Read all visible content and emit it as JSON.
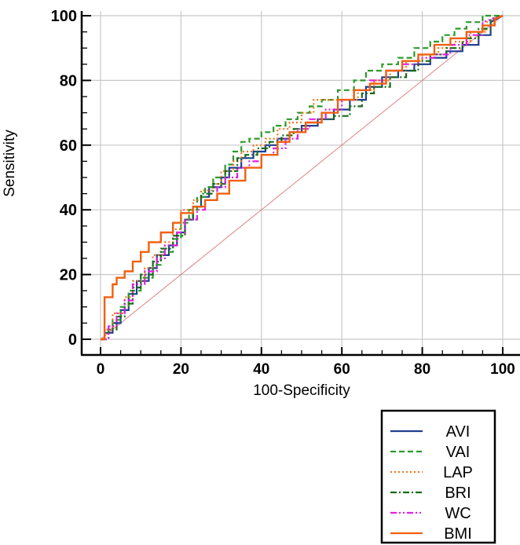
{
  "chart_data": {
    "type": "line",
    "title": "",
    "xlabel": "100-Specificity",
    "ylabel": "Sensitivity",
    "xlim": [
      0,
      100
    ],
    "ylim": [
      0,
      100
    ],
    "xticks": [
      0,
      20,
      40,
      60,
      80,
      100
    ],
    "yticks": [
      0,
      20,
      40,
      60,
      80,
      100
    ],
    "grid": true,
    "legend_position": "bottom-right",
    "reference_line": {
      "name": "chance",
      "color": "#e08080",
      "x": [
        0,
        100
      ],
      "y": [
        0,
        100
      ]
    },
    "series": [
      {
        "name": "AVI",
        "color": "#1f3f8f",
        "style": "solid",
        "x": [
          0,
          1,
          1,
          3,
          3,
          5,
          5,
          7,
          7,
          9,
          9,
          12,
          12,
          14,
          14,
          17,
          17,
          19,
          19,
          21,
          21,
          23,
          23,
          25,
          25,
          27,
          27,
          30,
          30,
          32,
          32,
          35,
          35,
          38,
          38,
          41,
          41,
          44,
          44,
          47,
          47,
          50,
          50,
          54,
          54,
          58,
          58,
          62,
          62,
          66,
          66,
          70,
          70,
          74,
          74,
          78,
          78,
          82,
          82,
          86,
          86,
          90,
          90,
          94,
          94,
          97,
          97,
          100
        ],
        "y": [
          0,
          0,
          2,
          2,
          5,
          5,
          9,
          9,
          14,
          14,
          18,
          18,
          22,
          22,
          26,
          26,
          29,
          29,
          33,
          33,
          37,
          37,
          41,
          41,
          44,
          44,
          47,
          47,
          50,
          50,
          53,
          53,
          56,
          56,
          58,
          58,
          60,
          60,
          62,
          62,
          64,
          64,
          66,
          66,
          68,
          68,
          71,
          71,
          74,
          74,
          78,
          78,
          81,
          81,
          83,
          83,
          85,
          85,
          87,
          87,
          89,
          89,
          91,
          91,
          94,
          94,
          98,
          100
        ]
      },
      {
        "name": "VAI",
        "color": "#2a9a2a",
        "style": "dash",
        "x": [
          0,
          1,
          1,
          3,
          3,
          5,
          5,
          7,
          7,
          10,
          10,
          13,
          13,
          15,
          15,
          18,
          18,
          20,
          20,
          22,
          22,
          24,
          24,
          26,
          26,
          28,
          28,
          31,
          31,
          33,
          33,
          35,
          35,
          37,
          37,
          40,
          40,
          43,
          43,
          46,
          46,
          49,
          49,
          52,
          52,
          55,
          55,
          59,
          59,
          63,
          63,
          66,
          66,
          70,
          70,
          74,
          74,
          78,
          78,
          82,
          82,
          85,
          85,
          88,
          88,
          91,
          91,
          95,
          95,
          100
        ],
        "y": [
          0,
          0,
          3,
          3,
          6,
          6,
          10,
          10,
          15,
          15,
          19,
          19,
          23,
          23,
          27,
          27,
          31,
          31,
          36,
          36,
          40,
          40,
          44,
          44,
          47,
          47,
          50,
          50,
          54,
          54,
          58,
          58,
          61,
          61,
          62,
          62,
          64,
          64,
          66,
          66,
          68,
          68,
          70,
          70,
          72,
          72,
          74,
          74,
          77,
          77,
          80,
          80,
          83,
          83,
          85,
          85,
          87,
          87,
          90,
          90,
          92,
          92,
          94,
          94,
          96,
          96,
          98,
          98,
          100,
          100
        ]
      },
      {
        "name": "LAP",
        "color": "#f07820",
        "style": "dot",
        "x": [
          0,
          1,
          1,
          3,
          3,
          6,
          6,
          8,
          8,
          11,
          11,
          13,
          13,
          16,
          16,
          18,
          18,
          20,
          20,
          23,
          23,
          25,
          25,
          28,
          28,
          30,
          30,
          33,
          33,
          35,
          35,
          38,
          38,
          41,
          41,
          44,
          44,
          47,
          47,
          50,
          50,
          53,
          53,
          57,
          57,
          60,
          60,
          64,
          64,
          68,
          68,
          72,
          72,
          76,
          76,
          80,
          80,
          84,
          84,
          88,
          88,
          92,
          92,
          96,
          96,
          100
        ],
        "y": [
          0,
          0,
          3,
          3,
          8,
          8,
          13,
          13,
          18,
          18,
          22,
          22,
          26,
          26,
          30,
          30,
          34,
          34,
          40,
          40,
          43,
          43,
          46,
          46,
          48,
          48,
          52,
          52,
          55,
          55,
          58,
          58,
          60,
          60,
          62,
          62,
          65,
          65,
          67,
          67,
          70,
          70,
          74,
          74,
          74,
          74,
          74,
          74,
          77,
          77,
          80,
          80,
          83,
          83,
          86,
          86,
          88,
          88,
          90,
          90,
          92,
          92,
          95,
          95,
          98,
          100
        ]
      },
      {
        "name": "BRI",
        "color": "#1a6a1a",
        "style": "dashdot",
        "x": [
          0,
          2,
          2,
          4,
          4,
          6,
          6,
          8,
          8,
          10,
          10,
          13,
          13,
          15,
          15,
          18,
          18,
          21,
          21,
          23,
          23,
          25,
          25,
          28,
          28,
          31,
          31,
          34,
          34,
          36,
          36,
          39,
          39,
          42,
          42,
          45,
          45,
          48,
          48,
          51,
          51,
          54,
          54,
          58,
          58,
          62,
          62,
          65,
          65,
          68,
          68,
          72,
          72,
          76,
          76,
          79,
          79,
          82,
          82,
          86,
          86,
          90,
          90,
          94,
          94,
          97,
          97,
          100
        ],
        "y": [
          0,
          0,
          3,
          3,
          7,
          7,
          11,
          11,
          16,
          16,
          20,
          20,
          24,
          24,
          28,
          28,
          32,
          32,
          37,
          37,
          41,
          41,
          45,
          45,
          48,
          48,
          52,
          52,
          56,
          56,
          57,
          57,
          59,
          59,
          61,
          61,
          63,
          63,
          65,
          65,
          67,
          67,
          68,
          68,
          69,
          69,
          72,
          72,
          76,
          76,
          78,
          78,
          81,
          81,
          83,
          83,
          86,
          86,
          88,
          88,
          90,
          90,
          93,
          93,
          96,
          96,
          99,
          100
        ]
      },
      {
        "name": "WC",
        "color": "#e020e0",
        "style": "dashdotdot",
        "x": [
          0,
          2,
          2,
          4,
          4,
          6,
          6,
          8,
          8,
          11,
          11,
          14,
          14,
          16,
          16,
          19,
          19,
          21,
          21,
          24,
          24,
          26,
          26,
          29,
          29,
          31,
          31,
          34,
          34,
          37,
          37,
          40,
          40,
          43,
          43,
          46,
          46,
          49,
          49,
          52,
          52,
          56,
          56,
          60,
          60,
          63,
          63,
          67,
          67,
          71,
          71,
          75,
          75,
          79,
          79,
          83,
          83,
          87,
          87,
          91,
          91,
          95,
          95,
          100
        ],
        "y": [
          0,
          0,
          4,
          4,
          8,
          8,
          12,
          12,
          17,
          17,
          21,
          21,
          25,
          25,
          29,
          29,
          33,
          33,
          37,
          37,
          40,
          40,
          43,
          43,
          47,
          47,
          50,
          50,
          53,
          53,
          55,
          55,
          57,
          57,
          59,
          59,
          62,
          62,
          65,
          65,
          68,
          68,
          71,
          71,
          74,
          74,
          77,
          77,
          80,
          80,
          83,
          83,
          85,
          85,
          87,
          87,
          88,
          88,
          91,
          91,
          94,
          94,
          98,
          100
        ]
      },
      {
        "name": "BMI",
        "color": "#f06010",
        "style": "solid",
        "x": [
          0,
          1,
          1,
          3,
          3,
          4,
          4,
          6,
          6,
          8,
          8,
          10,
          10,
          12,
          12,
          15,
          15,
          18,
          18,
          20,
          20,
          23,
          23,
          26,
          26,
          29,
          29,
          32,
          32,
          36,
          36,
          40,
          40,
          44,
          44,
          47,
          47,
          51,
          51,
          55,
          55,
          59,
          59,
          63,
          63,
          67,
          67,
          71,
          71,
          75,
          75,
          79,
          79,
          83,
          83,
          87,
          87,
          91,
          91,
          95,
          95,
          98,
          98,
          100
        ],
        "y": [
          0,
          0,
          13,
          13,
          17,
          17,
          19,
          19,
          21,
          21,
          24,
          24,
          27,
          27,
          30,
          30,
          33,
          33,
          36,
          36,
          39,
          39,
          41,
          41,
          43,
          43,
          45,
          45,
          49,
          49,
          53,
          53,
          57,
          57,
          61,
          61,
          64,
          64,
          67,
          67,
          70,
          70,
          74,
          74,
          77,
          77,
          79,
          79,
          83,
          83,
          86,
          86,
          88,
          88,
          91,
          91,
          93,
          93,
          95,
          95,
          97,
          97,
          99,
          100
        ]
      }
    ]
  }
}
